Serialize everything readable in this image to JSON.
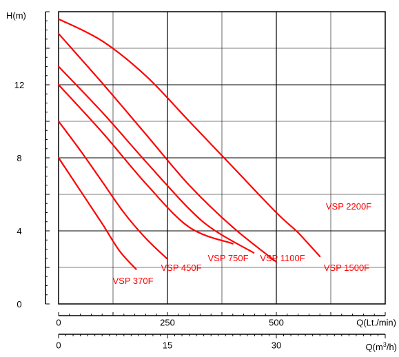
{
  "chart_data": {
    "type": "line",
    "title": "",
    "y_axis": {
      "label": "H(m)",
      "ticks": [
        0,
        4,
        8,
        12
      ],
      "range": [
        0,
        16
      ],
      "grid_step": 2
    },
    "x_axis_primary": {
      "label": "Q(Lt./min)",
      "ticks": [
        0,
        250,
        500
      ],
      "range": [
        0,
        750
      ],
      "grid_step": 125
    },
    "x_axis_secondary": {
      "label_prefix": "Q(m",
      "label_sup": "3",
      "label_suffix": "/h)",
      "ticks": [
        0,
        15,
        30
      ]
    },
    "grid": true,
    "line_color": "#ff0000",
    "series": [
      {
        "name": "VSP 370F",
        "points": [
          [
            0,
            8.0
          ],
          [
            50,
            6.2
          ],
          [
            100,
            4.4
          ],
          [
            140,
            2.9
          ],
          [
            178,
            1.9
          ]
        ]
      },
      {
        "name": "VSP 450F",
        "points": [
          [
            0,
            10.0
          ],
          [
            50,
            8.4
          ],
          [
            100,
            6.7
          ],
          [
            150,
            5.0
          ],
          [
            200,
            3.6
          ],
          [
            248,
            2.5
          ]
        ]
      },
      {
        "name": "VSP 750F",
        "points": [
          [
            0,
            12.0
          ],
          [
            100,
            9.4
          ],
          [
            200,
            6.6
          ],
          [
            300,
            4.2
          ],
          [
            400,
            3.3
          ]
        ]
      },
      {
        "name": "VSP 1100F",
        "points": [
          [
            0,
            13.0
          ],
          [
            100,
            10.5
          ],
          [
            200,
            7.8
          ],
          [
            300,
            5.2
          ],
          [
            360,
            4.0
          ],
          [
            448,
            2.8
          ]
        ]
      },
      {
        "name": "VSP 1500F",
        "points": [
          [
            0,
            14.8
          ],
          [
            100,
            12.1
          ],
          [
            200,
            9.3
          ],
          [
            300,
            6.5
          ],
          [
            400,
            4.2
          ],
          [
            500,
            2.3
          ]
        ]
      },
      {
        "name": "VSP 2200F",
        "points": [
          [
            0,
            15.6
          ],
          [
            100,
            14.4
          ],
          [
            200,
            12.5
          ],
          [
            300,
            10.0
          ],
          [
            400,
            7.5
          ],
          [
            500,
            5.0
          ],
          [
            550,
            3.9
          ],
          [
            600,
            2.6
          ]
        ]
      }
    ]
  }
}
